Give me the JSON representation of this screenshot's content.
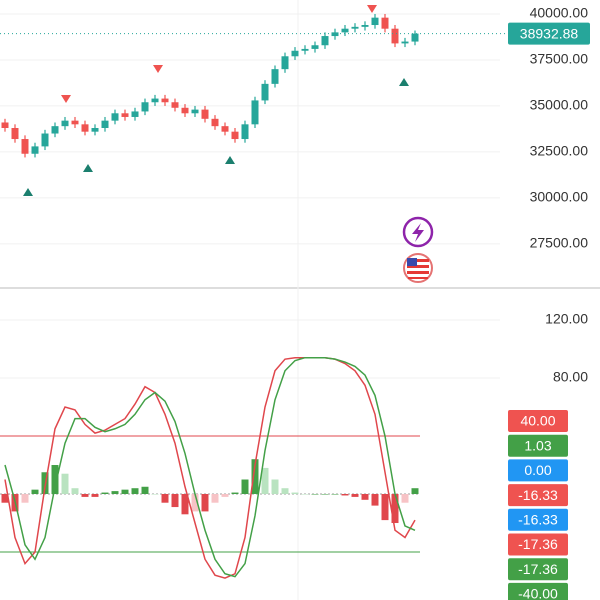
{
  "chart_data": [
    {
      "type": "candlestick",
      "categories": [
        null,
        null,
        null,
        null,
        null,
        null,
        null,
        null,
        null,
        null,
        null,
        null,
        null,
        null,
        null,
        null,
        null,
        null,
        null,
        null,
        null,
        null,
        null,
        null,
        null,
        null,
        null,
        null,
        null,
        null,
        null,
        null,
        null,
        null,
        null,
        null,
        null,
        null,
        null,
        null,
        null,
        null
      ],
      "open": [
        34100,
        33800,
        33200,
        32400,
        32800,
        33500,
        33900,
        34200,
        34000,
        33600,
        33800,
        34200,
        34600,
        34400,
        34700,
        35200,
        35400,
        35200,
        34900,
        34600,
        34800,
        34300,
        33900,
        33600,
        33200,
        34000,
        35300,
        36200,
        37000,
        37700,
        38000,
        38100,
        38300,
        38800,
        39000,
        39200,
        39300,
        39400,
        39800,
        39200,
        38400,
        38500
      ],
      "high": [
        34300,
        34000,
        33400,
        33000,
        33700,
        34100,
        34400,
        34400,
        34200,
        34000,
        34400,
        34800,
        34800,
        34900,
        35400,
        35600,
        35600,
        35400,
        35100,
        35000,
        35000,
        34500,
        34100,
        33800,
        34200,
        35500,
        36400,
        37200,
        37900,
        38200,
        38300,
        38500,
        39000,
        39200,
        39400,
        39500,
        39600,
        40000,
        40000,
        39400,
        38700,
        39100
      ],
      "low": [
        33600,
        33000,
        32200,
        32200,
        32600,
        33300,
        33700,
        33800,
        33400,
        33400,
        33600,
        34000,
        34200,
        34200,
        34500,
        35000,
        35000,
        34700,
        34400,
        34400,
        34100,
        33700,
        33400,
        33000,
        33000,
        33800,
        35100,
        36000,
        36800,
        37500,
        37800,
        37900,
        38100,
        38600,
        38800,
        39000,
        39100,
        39200,
        39000,
        38200,
        38200,
        38300
      ],
      "close": [
        33800,
        33200,
        32400,
        32800,
        33500,
        33900,
        34200,
        34000,
        33600,
        33800,
        34200,
        34600,
        34400,
        34700,
        35200,
        35400,
        35200,
        34900,
        34600,
        34800,
        34300,
        33900,
        33600,
        33200,
        34000,
        35300,
        36200,
        37000,
        37700,
        38000,
        38100,
        38300,
        38800,
        39000,
        39200,
        39300,
        39400,
        39800,
        39200,
        38400,
        38500,
        38932.88
      ],
      "up_color": "#26a69a",
      "down_color": "#ef5350",
      "ylim": [
        25100,
        40760
      ],
      "yticks": [
        {
          "value": 40000,
          "label": "40000.00"
        },
        {
          "value": 37500,
          "label": "37500.00"
        },
        {
          "value": 35000,
          "label": "35000.00"
        },
        {
          "value": 32500,
          "label": "32500.00"
        },
        {
          "value": 30000,
          "label": "30000.00"
        },
        {
          "value": 27500,
          "label": "27500.00"
        }
      ],
      "grid": true,
      "last_price": {
        "value": 38932.88,
        "label": "38932.88"
      }
    },
    {
      "type": "line",
      "categories": [
        null,
        null,
        null,
        null,
        null,
        null,
        null,
        null,
        null,
        null,
        null,
        null,
        null,
        null,
        null,
        null,
        null,
        null,
        null,
        null,
        null,
        null,
        null,
        null,
        null,
        null,
        null,
        null,
        null,
        null,
        null,
        null,
        null,
        null,
        null,
        null,
        null,
        null,
        null,
        null,
        null,
        null
      ],
      "series": [
        {
          "color": "#e0474c",
          "values": [
            10,
            -30,
            -48,
            -40,
            5,
            45,
            60,
            58,
            48,
            42,
            44,
            48,
            52,
            62,
            74,
            70,
            55,
            35,
            5,
            -20,
            -45,
            -56,
            -58,
            -55,
            -30,
            20,
            60,
            85,
            93,
            94,
            94,
            94,
            94,
            93,
            90,
            85,
            75,
            55,
            15,
            -25,
            -30,
            -18
          ]
        },
        {
          "color": "#43a047",
          "values": [
            20,
            -5,
            -35,
            -45,
            -30,
            5,
            35,
            52,
            52,
            46,
            43,
            45,
            48,
            55,
            65,
            70,
            64,
            50,
            28,
            0,
            -25,
            -45,
            -55,
            -57,
            -48,
            -15,
            30,
            65,
            85,
            92,
            94,
            94,
            94,
            93,
            91,
            88,
            82,
            68,
            40,
            0,
            -22,
            -25
          ]
        }
      ],
      "histogram": [
        -6,
        -12,
        -6,
        3,
        15,
        20,
        14,
        4,
        -2,
        -2,
        1,
        2,
        3,
        4,
        5,
        0,
        -6,
        -9,
        -14,
        -12,
        -12,
        -6,
        -2,
        1,
        10,
        24,
        18,
        10,
        4,
        1,
        0,
        0,
        0,
        0,
        -1,
        -2,
        -4,
        -8,
        -18,
        -20,
        -6,
        4
      ],
      "ylim": [
        -73.1,
        140.7
      ],
      "yticks": [
        {
          "value": 120,
          "label": "120.00"
        },
        {
          "value": 80,
          "label": "80.00"
        }
      ],
      "levels": [
        {
          "value": 40,
          "color": "#e0474c"
        },
        {
          "value": 0,
          "color": "#9e9e9e"
        },
        {
          "value": -40,
          "color": "#43a047"
        }
      ],
      "badges": [
        {
          "value": 40,
          "label": "40.00",
          "color": "#ef5350"
        },
        {
          "value": 1.03,
          "label": "1.03",
          "color": "#43a047"
        },
        {
          "value": 0,
          "label": "0.00",
          "color": "#2196f3"
        },
        {
          "value": -16.33,
          "label": "-16.33",
          "color": "#ef5350"
        },
        {
          "value": -16.33,
          "label": "-16.33",
          "color": "#2196f3"
        },
        {
          "value": -17.36,
          "label": "-17.36",
          "color": "#ef5350"
        },
        {
          "value": -17.36,
          "label": "-17.36",
          "color": "#43a047"
        },
        {
          "value": -40,
          "label": "-40.00",
          "color": "#43a047"
        }
      ]
    }
  ]
}
